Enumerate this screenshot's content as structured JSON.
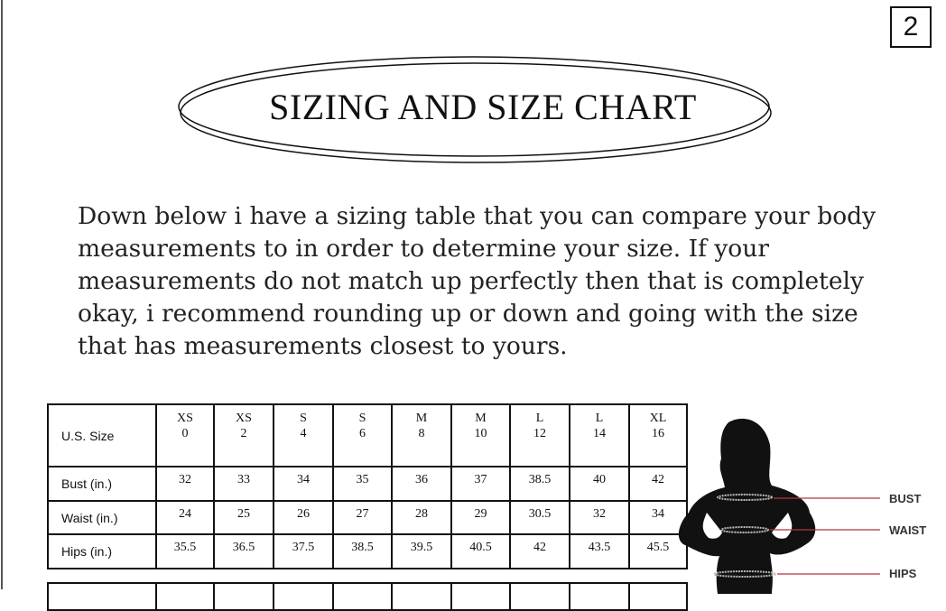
{
  "page_number": "2",
  "title": "SIZING AND SIZE CHART",
  "intro": "Down below i have a sizing table that you can compare your body measurements to in order to determine your size. If your measurements do not match up perfectly then that is completely okay, i recommend rounding up or down and going with the size that has measurements closest to yours.",
  "size_table": {
    "header_label": "U.S. Size",
    "sizes": [
      {
        "letter": "XS",
        "number": "0"
      },
      {
        "letter": "XS",
        "number": "2"
      },
      {
        "letter": "S",
        "number": "4"
      },
      {
        "letter": "S",
        "number": "6"
      },
      {
        "letter": "M",
        "number": "8"
      },
      {
        "letter": "M",
        "number": "10"
      },
      {
        "letter": "L",
        "number": "12"
      },
      {
        "letter": "L",
        "number": "14"
      },
      {
        "letter": "XL",
        "number": "16"
      }
    ],
    "rows": [
      {
        "label": "Bust (in.)",
        "values": [
          "32",
          "33",
          "34",
          "35",
          "36",
          "37",
          "38.5",
          "40",
          "42"
        ]
      },
      {
        "label": "Waist (in.)",
        "values": [
          "24",
          "25",
          "26",
          "27",
          "28",
          "29",
          "30.5",
          "32",
          "34"
        ]
      },
      {
        "label": "Hips (in.)",
        "values": [
          "35.5",
          "36.5",
          "37.5",
          "38.5",
          "39.5",
          "40.5",
          "42",
          "43.5",
          "45.5"
        ]
      }
    ]
  },
  "figure": {
    "labels": {
      "bust": "BUST",
      "waist": "WAIST",
      "hips": "HIPS"
    },
    "line_color": "#b3333f"
  }
}
